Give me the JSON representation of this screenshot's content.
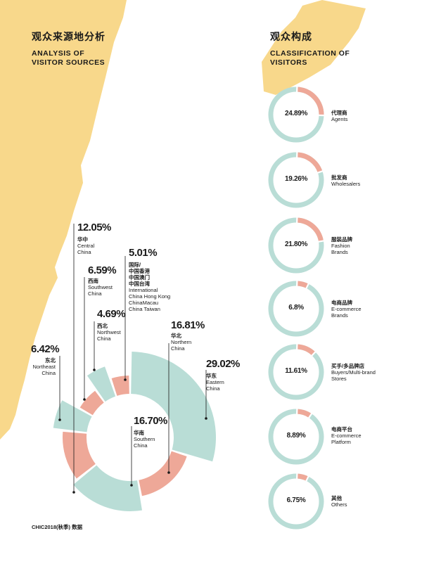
{
  "colors": {
    "teal": "#b9ddd6",
    "salmon": "#eea898",
    "yellow": "#f8d88b",
    "line": "#1a1a1a"
  },
  "left_title": {
    "zh": "观众来源地分析",
    "en_line1": "ANALYSIS OF",
    "en_line2": "VISITOR SOURCES"
  },
  "right_title": {
    "zh": "观众构成",
    "en_line1": "CLASSIFICATION OF",
    "en_line2": "VISITORS"
  },
  "footer": "CHIC2018(秋季) 数据",
  "chart_data": [
    {
      "type": "pie",
      "variant": "exploded-donut",
      "title": "观众来源地分析 ANALYSIS OF VISITOR SOURCES",
      "slices": [
        {
          "value": 29.02,
          "pct_label": "29.02%",
          "zh": "华东",
          "en": [
            "Eastern",
            "China"
          ],
          "color": "teal"
        },
        {
          "value": 16.81,
          "pct_label": "16.81%",
          "zh": "华北",
          "en": [
            "Northern",
            "China"
          ],
          "color": "salmon"
        },
        {
          "value": 16.7,
          "pct_label": "16.70%",
          "zh": "华南",
          "en": [
            "Southern",
            "China"
          ],
          "color": "teal"
        },
        {
          "value": 12.05,
          "pct_label": "12.05%",
          "zh": "华中",
          "en": [
            "Central",
            "China"
          ],
          "color": "salmon"
        },
        {
          "value": 6.42,
          "pct_label": "6.42%",
          "zh": "东北",
          "en": [
            "Northeast",
            "China"
          ],
          "color": "teal"
        },
        {
          "value": 6.59,
          "pct_label": "6.59%",
          "zh": "西南",
          "en": [
            "Southwest",
            "China"
          ],
          "color": "salmon"
        },
        {
          "value": 4.69,
          "pct_label": "4.69%",
          "zh": "西北",
          "en": [
            "Northwest",
            "China"
          ],
          "color": "teal"
        },
        {
          "value": 5.01,
          "pct_label": "5.01%",
          "zh": "国际/",
          "zh_extra": [
            "中国香港",
            "中国澳门",
            "中国台湾"
          ],
          "en": [
            "International",
            "China Hong Kong",
            "ChinaMacau",
            "China Taiwan"
          ],
          "color": "salmon"
        }
      ]
    },
    {
      "type": "pie",
      "variant": "ring-gauges",
      "title": "观众构成 CLASSIFICATION OF VISITORS",
      "items": [
        {
          "value": 24.89,
          "label": "24.89%",
          "zh": "代理商",
          "en": [
            "Agents"
          ]
        },
        {
          "value": 19.26,
          "label": "19.26%",
          "zh": "批发商",
          "en": [
            "Wholesalers"
          ]
        },
        {
          "value": 21.8,
          "label": "21.80%",
          "zh": "服装品牌",
          "en": [
            "Fashion",
            "Brands"
          ]
        },
        {
          "value": 6.8,
          "label": "6.8%",
          "zh": "电商品牌",
          "en": [
            "E-commerce",
            "Brands"
          ]
        },
        {
          "value": 11.61,
          "label": "11.61%",
          "zh": "买手/多品牌店",
          "en": [
            "Buyers/Multi-brand",
            "Stores"
          ]
        },
        {
          "value": 8.89,
          "label": "8.89%",
          "zh": "电商平台",
          "en": [
            "E-commerce",
            "Platform"
          ]
        },
        {
          "value": 6.75,
          "label": "6.75%",
          "zh": "其他",
          "en": [
            "Others"
          ]
        }
      ]
    }
  ]
}
